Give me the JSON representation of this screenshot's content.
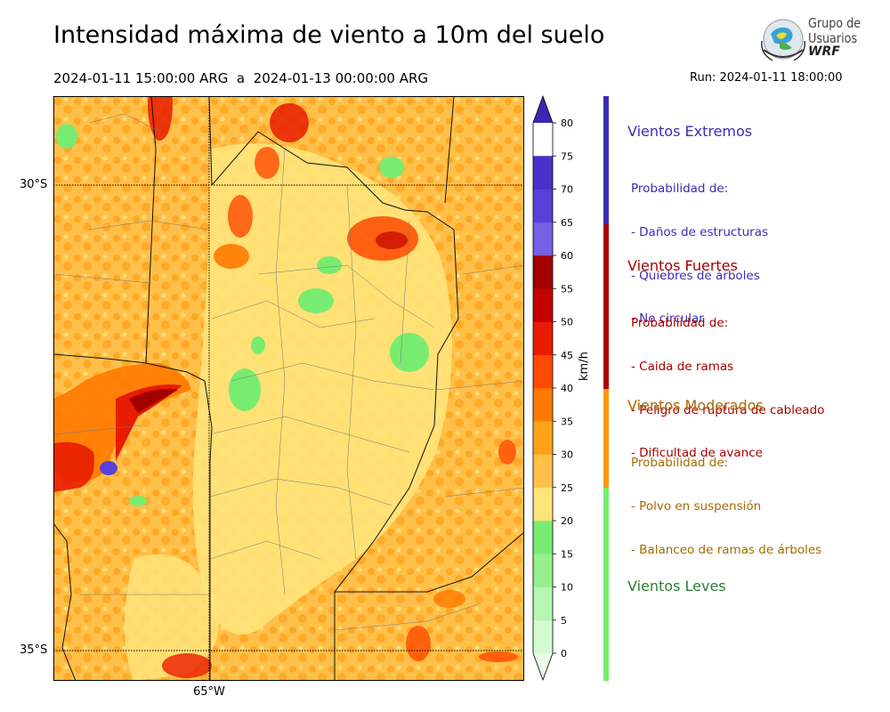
{
  "title": "Intensidad máxima de viento a 10m del suelo",
  "period": "2024-01-11 15:00:00 ARG  a  2024-01-13 00:00:00 ARG",
  "run": "Run: 2024-01-11 18:00:00",
  "logo": {
    "line1": "Grupo de",
    "line2": "Usuarios",
    "line3": "WRF"
  },
  "map": {
    "lat_labels": [
      "30°S",
      "35°S"
    ],
    "lon_labels": [
      "65°W"
    ]
  },
  "colorbar": {
    "unit": "km/h",
    "ticks": [
      "0",
      "5",
      "10",
      "15",
      "20",
      "25",
      "30",
      "35",
      "40",
      "45",
      "50",
      "55",
      "60",
      "65",
      "70",
      "75",
      "80"
    ],
    "colors": [
      "#ecfdec",
      "#d2fbd0",
      "#b6f6b0",
      "#96f08c",
      "#78ec70",
      "#ffe47a",
      "#ffc04a",
      "#ffa21a",
      "#ff7a00",
      "#ff4a00",
      "#e81c00",
      "#c40000",
      "#a00000",
      "#7460e0",
      "#5a40d8",
      "#4a30c8",
      "#3a26b4"
    ]
  },
  "categories": [
    {
      "title": "Vientos Extremos",
      "color": "#3a2cb4",
      "lines": [
        "Probabilidad de:",
        "- Daños de estructuras",
        "- Quiebres de árboles",
        "- No circular"
      ]
    },
    {
      "title": "Vientos Fuertes",
      "color": "#a80000",
      "lines": [
        "Probabilidad de:",
        "- Caida de ramas",
        "- Peligro de ruptura de cableado",
        "- Dificultad de avance"
      ]
    },
    {
      "title": "Vientos Moderados",
      "color": "#a86a00",
      "lines": [
        "Probabilidad de:",
        "- Polvo en suspensión",
        "- Balanceo de ramas de árboles"
      ]
    },
    {
      "title": "Vientos Leves",
      "color": "#2e7d32",
      "lines": []
    }
  ],
  "category_bar_colors": [
    "#3a2cb4",
    "#a80000",
    "#ff9a00",
    "#78ec70"
  ]
}
